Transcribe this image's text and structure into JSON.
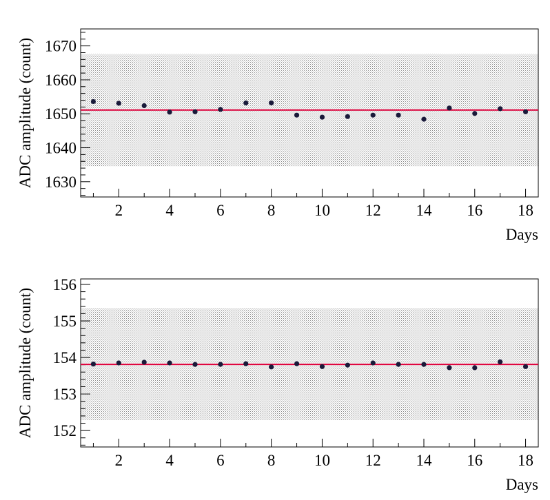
{
  "chart_data": [
    {
      "type": "scatter",
      "xlabel": "Days",
      "ylabel": "ADC amplitude (count)",
      "xlim": [
        0.5,
        18.5
      ],
      "ylim": [
        1625.5,
        1675
      ],
      "xticks": [
        2,
        4,
        6,
        8,
        10,
        12,
        14,
        16,
        18
      ],
      "xtick_labels": [
        "2",
        "4",
        "6",
        "8",
        "10",
        "12",
        "14",
        "16",
        "18"
      ],
      "yticks": [
        1630,
        1640,
        1650,
        1660,
        1670
      ],
      "ytick_labels": [
        "1630",
        "1640",
        "1650",
        "1660",
        "1670"
      ],
      "x": [
        1,
        2,
        3,
        4,
        5,
        6,
        7,
        8,
        9,
        10,
        11,
        12,
        13,
        14,
        15,
        16,
        17,
        18
      ],
      "y": [
        1653.6,
        1653.1,
        1652.4,
        1650.5,
        1650.6,
        1651.3,
        1653.2,
        1653.2,
        1649.6,
        1649.0,
        1649.2,
        1649.6,
        1649.6,
        1648.4,
        1651.7,
        1650.1,
        1651.5,
        1650.6
      ],
      "mean_line": 1651.1,
      "band": [
        1634.5,
        1667.6
      ],
      "grid": false
    },
    {
      "type": "scatter",
      "xlabel": "Days",
      "ylabel": "ADC amplitude (count)",
      "xlim": [
        0.5,
        18.5
      ],
      "ylim": [
        151.55,
        156.15
      ],
      "xticks": [
        2,
        4,
        6,
        8,
        10,
        12,
        14,
        16,
        18
      ],
      "xtick_labels": [
        "2",
        "4",
        "6",
        "8",
        "10",
        "12",
        "14",
        "16",
        "18"
      ],
      "yticks": [
        152,
        153,
        154,
        155,
        156
      ],
      "ytick_labels": [
        "152",
        "153",
        "154",
        "155",
        "156"
      ],
      "x": [
        1,
        2,
        3,
        4,
        5,
        6,
        7,
        8,
        9,
        10,
        11,
        12,
        13,
        14,
        15,
        16,
        17,
        18
      ],
      "y": [
        153.82,
        153.85,
        153.87,
        153.85,
        153.81,
        153.81,
        153.83,
        153.74,
        153.83,
        153.75,
        153.79,
        153.85,
        153.81,
        153.81,
        153.72,
        153.72,
        153.88,
        153.75
      ],
      "mean_line": 153.81,
      "band": [
        152.28,
        155.35
      ],
      "grid": false
    }
  ],
  "colors": {
    "marker": "#1a1a3a",
    "mean_line": "#e0003c",
    "band_dot": "#8a8a8a",
    "frame": "#000000"
  }
}
